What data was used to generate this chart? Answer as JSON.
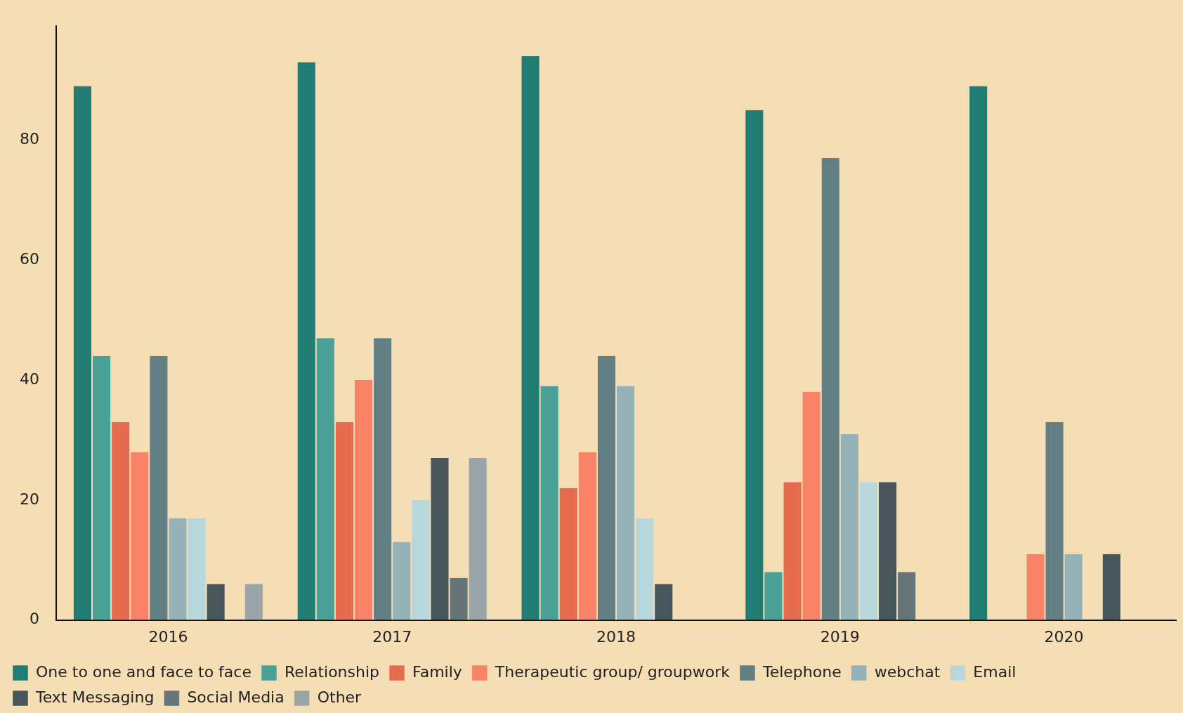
{
  "chart_data": {
    "type": "bar",
    "categories": [
      "2016",
      "2017",
      "2018",
      "2019",
      "2020"
    ],
    "series": [
      {
        "name": "One to one and face to face",
        "color": "#217c74",
        "values": [
          89,
          93,
          94,
          85,
          89
        ]
      },
      {
        "name": "Relationship",
        "color": "#4aa197",
        "values": [
          44,
          47,
          39,
          8,
          null
        ]
      },
      {
        "name": "Family",
        "color": "#e66c4f",
        "values": [
          33,
          33,
          22,
          23,
          null
        ]
      },
      {
        "name": "Therapeutic group/ groupwork",
        "color": "#f88366",
        "values": [
          28,
          40,
          28,
          38,
          11
        ]
      },
      {
        "name": "Telephone",
        "color": "#627f86",
        "values": [
          44,
          47,
          44,
          77,
          33
        ]
      },
      {
        "name": "webchat",
        "color": "#95b2b8",
        "values": [
          17,
          13,
          39,
          31,
          11
        ]
      },
      {
        "name": "Email",
        "color": "#b8d7dd",
        "values": [
          17,
          20,
          17,
          23,
          null
        ]
      },
      {
        "name": "Text Messaging",
        "color": "#47565b",
        "values": [
          6,
          27,
          6,
          23,
          11
        ]
      },
      {
        "name": "Social Media",
        "color": "#667578",
        "values": [
          null,
          7,
          null,
          8,
          null
        ]
      },
      {
        "name": "Other",
        "color": "#9aa5a8",
        "values": [
          6,
          27,
          null,
          null,
          null
        ]
      }
    ],
    "ylim": [
      0,
      99
    ],
    "yticks": [
      0,
      20,
      40,
      60,
      80
    ],
    "grid": false,
    "legend": "bottom"
  }
}
